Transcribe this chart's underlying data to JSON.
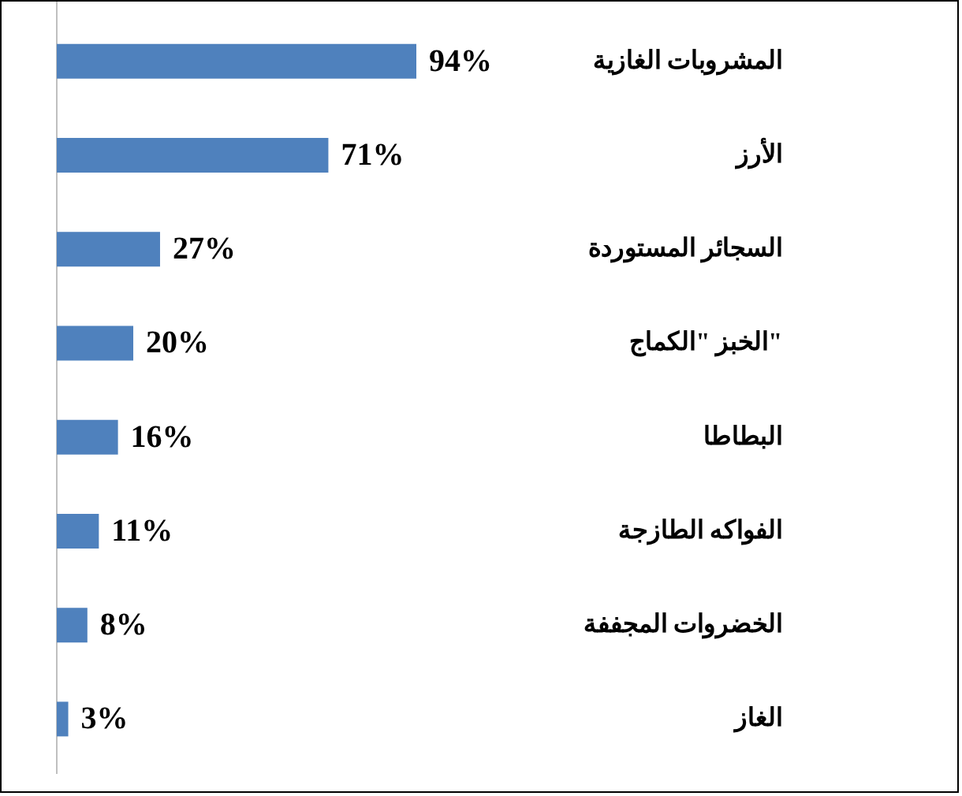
{
  "chart_data": {
    "type": "bar",
    "orientation": "horizontal",
    "categories": [
      "المشروبات الغازية",
      "الأرز",
      "السجائر المستوردة",
      "الخبز \"الكماج\"",
      "البطاطا",
      "الفواكه الطازجة",
      "الخضروات المجففة",
      "الغاز"
    ],
    "values": [
      94,
      71,
      27,
      20,
      16,
      11,
      8,
      3
    ],
    "value_labels": [
      "94%",
      "71%",
      "27%",
      "20%",
      "16%",
      "11%",
      "8%",
      "3%"
    ],
    "color": "#4f81bd"
  }
}
